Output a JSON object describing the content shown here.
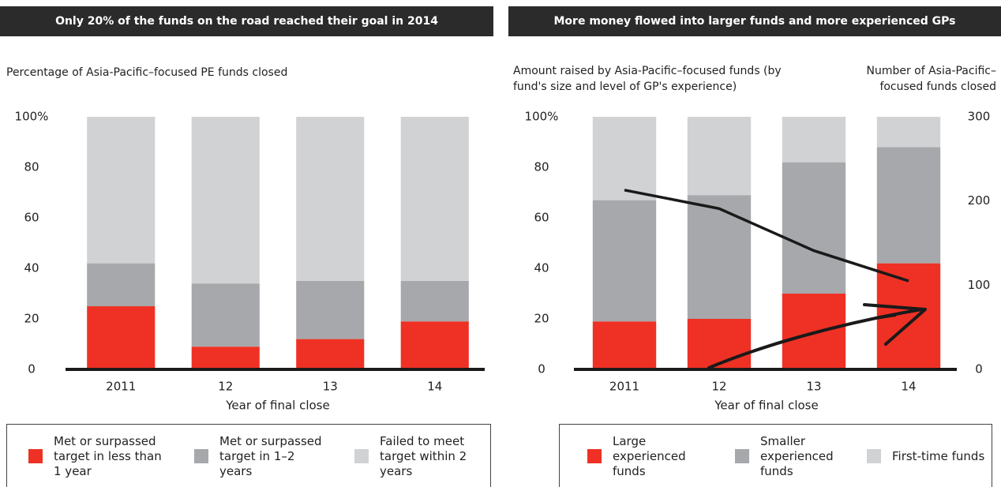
{
  "chart_data": [
    {
      "type": "bar",
      "stacked": true,
      "title": "Only 20% of the funds on the road reached their goal in 2014",
      "ylabel": "Percentage of Asia-Pacific–focused PE funds closed",
      "xlabel": "Year of final close",
      "categories": [
        "2011",
        "12",
        "13",
        "14"
      ],
      "series": [
        {
          "name": "Met or surpassed target in less than 1 year",
          "color": "#ee3124",
          "values": [
            25,
            9,
            12,
            19
          ]
        },
        {
          "name": "Met or surpassed target in 1–2 years",
          "color": "#a7a8ab",
          "values": [
            17,
            25,
            23,
            16
          ]
        },
        {
          "name": "Failed to meet target within 2 years",
          "color": "#d1d2d4",
          "values": [
            58,
            66,
            65,
            65
          ]
        }
      ],
      "ylim": [
        0,
        100
      ],
      "yticks": [
        0,
        20,
        40,
        60,
        80,
        {
          "value": 100,
          "label": "100%"
        }
      ]
    },
    {
      "type": "bar",
      "stacked": true,
      "title": "More money flowed into larger funds and more experienced GPs",
      "ylabel": "Amount raised by Asia-Pacific–focused funds (by fund's size and level of GP's experience)",
      "y2label": "Number of Asia-Pacific–focused funds closed",
      "xlabel": "Year of final close",
      "categories": [
        "2011",
        "12",
        "13",
        "14"
      ],
      "series": [
        {
          "name": "Large experienced funds",
          "color": "#ee3124",
          "values": [
            19,
            20,
            30,
            42
          ]
        },
        {
          "name": "Smaller experienced funds",
          "color": "#a7a8ab",
          "values": [
            48,
            49,
            52,
            46
          ]
        },
        {
          "name": "First-time funds",
          "color": "#d1d2d4",
          "values": [
            33,
            31,
            18,
            12
          ]
        },
        {
          "type": "line",
          "axis": "y2",
          "color": "#1a1a1a",
          "values": [
            213,
            191,
            141,
            105
          ]
        }
      ],
      "ylim": [
        0,
        100
      ],
      "yticks": [
        0,
        20,
        40,
        60,
        80,
        {
          "value": 100,
          "label": "100%"
        }
      ],
      "y2lim": [
        0,
        300
      ],
      "y2ticks": [
        0,
        100,
        200,
        300
      ]
    }
  ]
}
